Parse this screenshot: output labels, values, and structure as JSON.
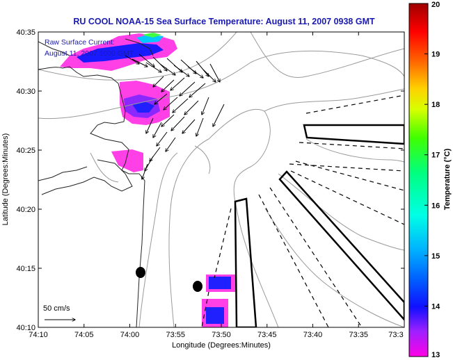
{
  "chart_data": {
    "type": "heatmap",
    "title": "RU COOL  NOAA-15  Sea Surface Temperature:  August 11, 2007 0938 GMT",
    "xlabel": "Longitude (Degrees:Minutes)",
    "ylabel": "Latitude (Degrees:Minutes)",
    "x_ticks": [
      "74:10",
      "74:05",
      "74:00",
      "73:55",
      "73:50",
      "73:45",
      "73:40",
      "73:35",
      "73:3"
    ],
    "y_ticks": [
      "40:35",
      "40:30",
      "40:25",
      "40:20",
      "40:15",
      "40:10"
    ],
    "xlim_min": [
      -74.1667,
      -73.5
    ],
    "ylim_min": [
      40.1667,
      40.5833
    ],
    "colorbar": {
      "label": "Temperature (°C)",
      "ticks": [
        "20",
        "19",
        "18",
        "17",
        "16",
        "15",
        "14",
        "13"
      ],
      "range": [
        13,
        20
      ],
      "colors": [
        "#ff00e6",
        "#8c28ff",
        "#0014ff",
        "#00a0ff",
        "#00ffd2",
        "#00ff3c",
        "#d2ff00",
        "#ffc800",
        "#ff3c00",
        "#a00000"
      ]
    },
    "annotations": {
      "current_label": "Raw Surface Current:",
      "current_time": "August 11, 2007 1000 GMT",
      "scale_label": "50 cm/s"
    },
    "sst_patches": [
      {
        "region": "northwest",
        "temp": 13.4
      },
      {
        "region": "west-central",
        "temp": 13.2
      },
      {
        "region": "southeast-small",
        "temp": 13.6
      }
    ],
    "current_vectors": "surface current arrows over Raritan Bay / Hudson Canyon apex"
  },
  "colors": {
    "title_blue": "#1a1ab0",
    "coast": "#222222",
    "bathymetry": "#9a9a9a"
  }
}
